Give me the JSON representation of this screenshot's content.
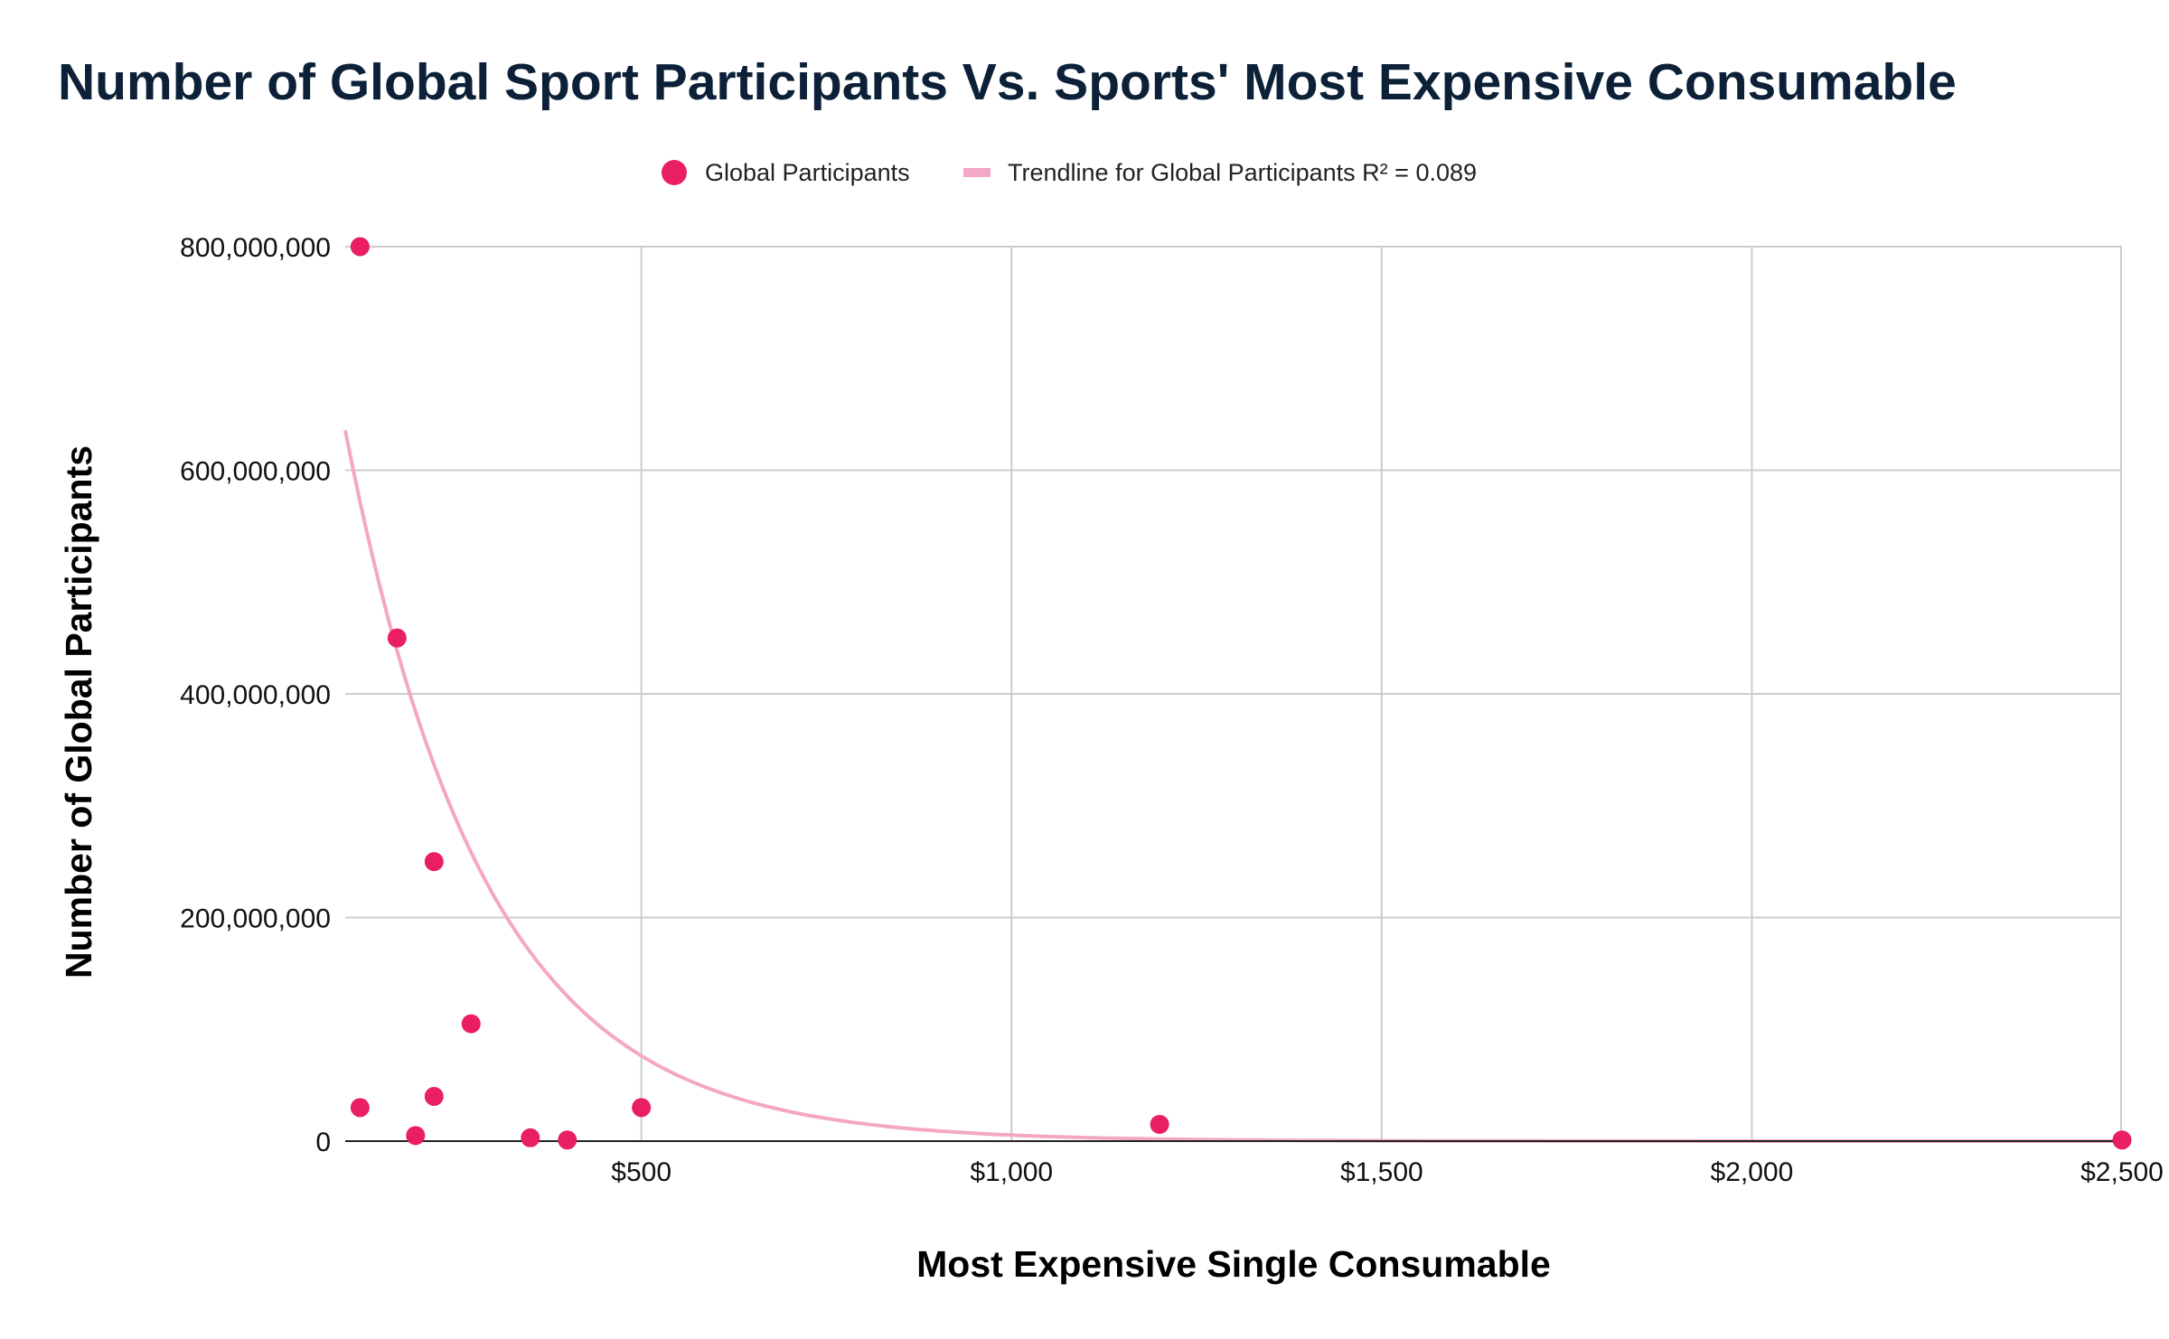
{
  "chart_data": {
    "type": "scatter",
    "title": "Number of Global Sport Participants Vs. Sports' Most Expensive Consumable",
    "xlabel": "Most Expensive Single Consumable",
    "ylabel": "Number of Global Participants",
    "xlim": [
      100,
      2500
    ],
    "ylim": [
      0,
      800000000
    ],
    "x_ticks": [
      {
        "value": 500,
        "label": "$500"
      },
      {
        "value": 1000,
        "label": "$1,000"
      },
      {
        "value": 1500,
        "label": "$1,500"
      },
      {
        "value": 2000,
        "label": "$2,000"
      },
      {
        "value": 2500,
        "label": "$2,500"
      }
    ],
    "y_ticks": [
      {
        "value": 0,
        "label": "0"
      },
      {
        "value": 200000000,
        "label": "200,000,000"
      },
      {
        "value": 400000000,
        "label": "400,000,000"
      },
      {
        "value": 600000000,
        "label": "600,000,000"
      },
      {
        "value": 800000000,
        "label": "800,000,000"
      }
    ],
    "grid": true,
    "legend_position": "top-center",
    "series": [
      {
        "name": "Global Participants",
        "color": "#e91e63",
        "points": [
          {
            "x": 120,
            "y": 800000000
          },
          {
            "x": 170,
            "y": 450000000
          },
          {
            "x": 220,
            "y": 250000000
          },
          {
            "x": 270,
            "y": 105000000
          },
          {
            "x": 120,
            "y": 30000000
          },
          {
            "x": 220,
            "y": 40000000
          },
          {
            "x": 195,
            "y": 5000000
          },
          {
            "x": 350,
            "y": 3000000
          },
          {
            "x": 400,
            "y": 1000000
          },
          {
            "x": 500,
            "y": 30000000
          },
          {
            "x": 1200,
            "y": 15000000
          },
          {
            "x": 2500,
            "y": 1000000
          }
        ]
      }
    ],
    "trendline": {
      "name": "Trendline for Global Participants R² = 0.089",
      "type": "exponential",
      "a": 1080000000,
      "b": -0.0053,
      "color": "#f4a7c4"
    }
  }
}
